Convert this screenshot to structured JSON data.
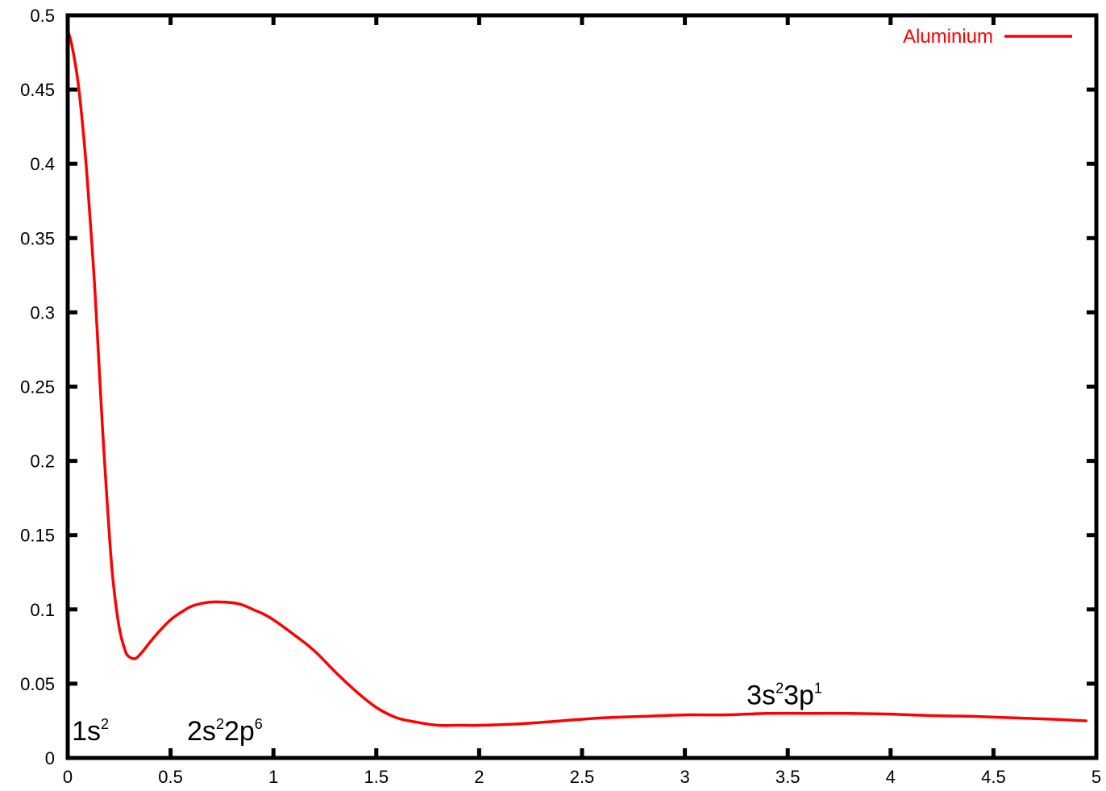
{
  "chart_data": {
    "type": "line",
    "title": "",
    "xlabel": "",
    "ylabel": "",
    "xlim": [
      0,
      5
    ],
    "ylim": [
      0,
      0.5
    ],
    "xticks": [
      "0",
      "0.5",
      "1",
      "1.5",
      "2",
      "2.5",
      "3",
      "3.5",
      "4",
      "4.5",
      "5"
    ],
    "yticks": [
      "0",
      "0.05",
      "0.1",
      "0.15",
      "0.2",
      "0.25",
      "0.3",
      "0.35",
      "0.4",
      "0.45",
      "0.5"
    ],
    "grid": false,
    "legend_position": "top-right",
    "series": [
      {
        "name": "Aluminium",
        "color": "#ff0000",
        "x": [
          0.0,
          0.02,
          0.05,
          0.08,
          0.1,
          0.13,
          0.15,
          0.17,
          0.2,
          0.22,
          0.25,
          0.28,
          0.3,
          0.33,
          0.36,
          0.4,
          0.45,
          0.5,
          0.55,
          0.6,
          0.65,
          0.7,
          0.75,
          0.8,
          0.85,
          0.9,
          0.95,
          1.0,
          1.1,
          1.2,
          1.3,
          1.4,
          1.5,
          1.6,
          1.7,
          1.8,
          1.9,
          2.0,
          2.2,
          2.4,
          2.6,
          2.8,
          3.0,
          3.2,
          3.4,
          3.6,
          3.8,
          4.0,
          4.2,
          4.4,
          4.6,
          4.8,
          4.95
        ],
        "y": [
          0.49,
          0.48,
          0.455,
          0.415,
          0.38,
          0.32,
          0.27,
          0.22,
          0.155,
          0.12,
          0.088,
          0.072,
          0.068,
          0.067,
          0.071,
          0.078,
          0.086,
          0.093,
          0.098,
          0.102,
          0.104,
          0.105,
          0.105,
          0.1045,
          0.103,
          0.1,
          0.097,
          0.093,
          0.083,
          0.072,
          0.058,
          0.045,
          0.034,
          0.027,
          0.024,
          0.022,
          0.022,
          0.022,
          0.023,
          0.025,
          0.027,
          0.028,
          0.029,
          0.029,
          0.03,
          0.03,
          0.03,
          0.0295,
          0.0285,
          0.028,
          0.027,
          0.026,
          0.025
        ]
      }
    ],
    "annotations": [
      {
        "base": "1s",
        "sup": "2",
        "x": 0.02,
        "y": 0.012
      },
      {
        "base": "2s",
        "sup": "2",
        "base2": "2p",
        "sup2": "6",
        "x": 0.58,
        "y": 0.012
      },
      {
        "base": "3s",
        "sup": "2",
        "base2": "3p",
        "sup2": "1",
        "x": 3.3,
        "y": 0.036
      }
    ]
  }
}
